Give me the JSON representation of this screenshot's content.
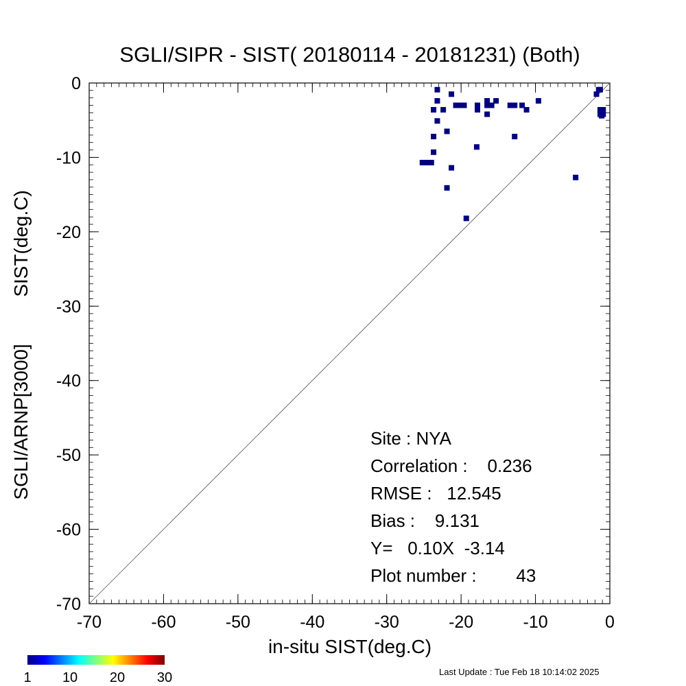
{
  "chart_data": {
    "type": "scatter",
    "title": "SGLI/SIPR - SIST( 20180114 - 20181231) (Both)",
    "xlabel": "in-situ SIST(deg.C)",
    "ylabel_left": "SGLI/ARNP[3000]",
    "ylabel_right": "SIST(deg.C)",
    "xlim": [
      -70,
      0
    ],
    "ylim": [
      -70,
      0
    ],
    "xticks": [
      -70,
      -60,
      -50,
      -40,
      -30,
      -20,
      -10,
      0
    ],
    "yticks": [
      0,
      -10,
      -20,
      -30,
      -40,
      -50,
      -60,
      -70
    ],
    "one_to_one_line": true,
    "point_color": "#000080",
    "points": [
      [
        -25.2,
        -10.7
      ],
      [
        -24.8,
        -10.7
      ],
      [
        -24.4,
        -10.7
      ],
      [
        -24.0,
        -10.7
      ],
      [
        -23.7,
        -9.3
      ],
      [
        -23.7,
        -7.2
      ],
      [
        -23.7,
        -3.6
      ],
      [
        -23.2,
        -5.1
      ],
      [
        -23.2,
        -2.4
      ],
      [
        -23.2,
        -0.9
      ],
      [
        -22.4,
        -3.6
      ],
      [
        -21.9,
        -6.5
      ],
      [
        -21.9,
        -14.1
      ],
      [
        -21.3,
        -11.4
      ],
      [
        -21.3,
        -1.5
      ],
      [
        -20.7,
        -3.0
      ],
      [
        -20.2,
        -3.0
      ],
      [
        -19.6,
        -3.0
      ],
      [
        -19.3,
        -18.2
      ],
      [
        -17.9,
        -8.6
      ],
      [
        -17.8,
        -3.0
      ],
      [
        -17.8,
        -3.6
      ],
      [
        -16.5,
        -2.4
      ],
      [
        -16.5,
        -3.0
      ],
      [
        -16.5,
        -4.2
      ],
      [
        -15.9,
        -3.0
      ],
      [
        -15.3,
        -2.4
      ],
      [
        -13.4,
        -3.0
      ],
      [
        -12.8,
        -3.0
      ],
      [
        -12.8,
        -7.2
      ],
      [
        -11.8,
        -3.0
      ],
      [
        -11.2,
        -3.6
      ],
      [
        -9.6,
        -2.4
      ],
      [
        -4.6,
        -12.7
      ],
      [
        -1.8,
        -1.5
      ],
      [
        -1.3,
        -0.9
      ],
      [
        -1.3,
        -3.6
      ],
      [
        -1.3,
        -4.2
      ],
      [
        -1.1,
        -3.9
      ],
      [
        -1.1,
        -4.4
      ],
      [
        -0.9,
        -3.6
      ],
      [
        -0.9,
        -4.2
      ],
      [
        -1.5,
        -0.9
      ]
    ],
    "stats": {
      "site": "Site : NYA",
      "correlation": "Correlation :    0.236",
      "rmse": "RMSE :   12.545",
      "bias": "Bias :    9.131",
      "regression": "Y=   0.10X  -3.14",
      "plot_number": "Plot number :        43"
    },
    "colorbar": {
      "labels": [
        "1",
        "10",
        "20",
        "30"
      ],
      "range": [
        1,
        30
      ],
      "colors": [
        "#00007f",
        "#0000ff",
        "#007fff",
        "#00ffff",
        "#7fff7f",
        "#ffff00",
        "#ff7f00",
        "#ff0000",
        "#7f0000"
      ]
    }
  },
  "footer": {
    "last_update": "Last Update : Tue Feb 18 10:14:02 2025"
  }
}
